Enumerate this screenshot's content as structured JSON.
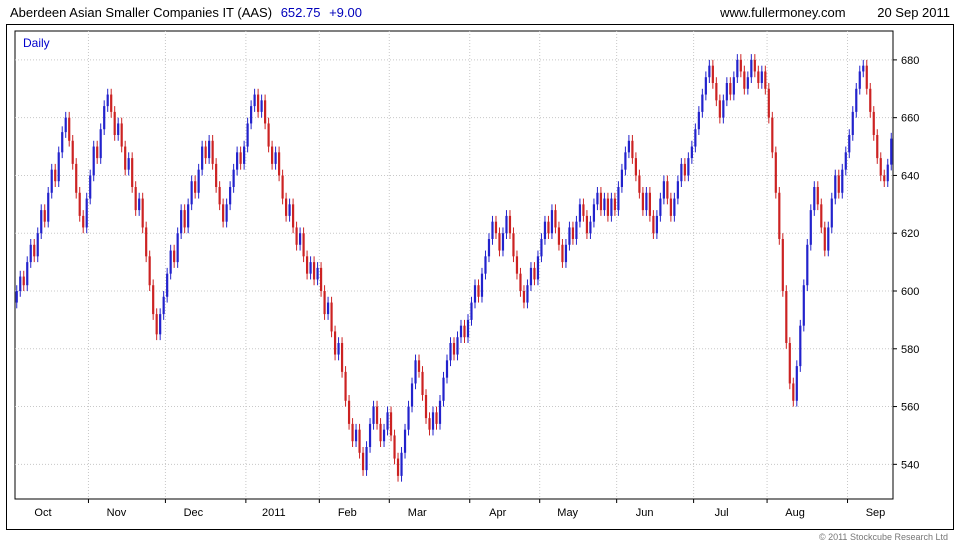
{
  "header": {
    "title": "Aberdeen Asian Smaller Companies IT (AAS)",
    "price": "652.75",
    "change": "+9.00",
    "site": "www.fullermoney.com",
    "date": "20 Sep 2011"
  },
  "chart": {
    "timeframe_label": "Daily",
    "copyright": "© 2011 Stockcube Research Ltd"
  },
  "chart_data": {
    "type": "candlestick",
    "title": "Aberdeen Asian Smaller Companies IT (AAS)",
    "timeframe": "Daily",
    "last_price": 652.75,
    "change": 9.0,
    "ylim": [
      528,
      690
    ],
    "y_ticks": [
      540,
      560,
      580,
      600,
      620,
      640,
      660,
      680
    ],
    "x_labels": [
      "Oct",
      "Nov",
      "Dec",
      "2011",
      "Feb",
      "Mar",
      "Apr",
      "May",
      "Jun",
      "Jul",
      "Aug",
      "Sep"
    ],
    "days_per_month": [
      21,
      22,
      23,
      21,
      20,
      23,
      20,
      22,
      22,
      21,
      23,
      13
    ],
    "first_open": 596,
    "up_color": "#2222cc",
    "down_color": "#cc2222",
    "grid_color": "#c8c8c8",
    "closes": [
      600,
      605,
      602,
      610,
      616,
      612,
      620,
      628,
      624,
      634,
      642,
      638,
      648,
      655,
      660,
      652,
      644,
      634,
      626,
      622,
      632,
      640,
      650,
      646,
      656,
      664,
      668,
      662,
      654,
      658,
      650,
      642,
      646,
      636,
      628,
      632,
      622,
      612,
      602,
      592,
      585,
      592,
      598,
      606,
      614,
      610,
      620,
      628,
      622,
      630,
      638,
      634,
      642,
      650,
      646,
      652,
      644,
      636,
      630,
      624,
      630,
      636,
      642,
      648,
      644,
      650,
      658,
      664,
      668,
      662,
      666,
      658,
      650,
      644,
      648,
      640,
      632,
      626,
      630,
      622,
      616,
      620,
      612,
      606,
      610,
      604,
      608,
      600,
      592,
      596,
      586,
      578,
      582,
      572,
      562,
      554,
      548,
      552,
      544,
      538,
      546,
      554,
      560,
      554,
      548,
      552,
      558,
      550,
      542,
      536,
      544,
      552,
      560,
      568,
      576,
      572,
      564,
      556,
      552,
      558,
      554,
      562,
      570,
      576,
      582,
      578,
      584,
      588,
      584,
      590,
      596,
      602,
      598,
      606,
      612,
      618,
      624,
      620,
      614,
      620,
      626,
      620,
      612,
      606,
      600,
      596,
      602,
      608,
      604,
      612,
      618,
      624,
      620,
      628,
      622,
      616,
      610,
      616,
      622,
      618,
      624,
      630,
      626,
      620,
      624,
      630,
      634,
      628,
      632,
      626,
      632,
      628,
      636,
      642,
      648,
      652,
      646,
      640,
      634,
      628,
      634,
      626,
      620,
      626,
      632,
      638,
      632,
      626,
      632,
      638,
      644,
      640,
      646,
      650,
      656,
      662,
      668,
      674,
      678,
      672,
      666,
      660,
      666,
      672,
      668,
      674,
      680,
      676,
      670,
      674,
      680,
      676,
      672,
      676,
      670,
      660,
      648,
      634,
      618,
      600,
      582,
      568,
      562,
      574,
      588,
      602,
      616,
      628,
      636,
      630,
      622,
      614,
      622,
      632,
      640,
      634,
      642,
      648,
      654,
      662,
      670,
      676,
      678,
      670,
      662,
      654,
      646,
      640,
      638,
      643.75,
      652.75
    ]
  }
}
